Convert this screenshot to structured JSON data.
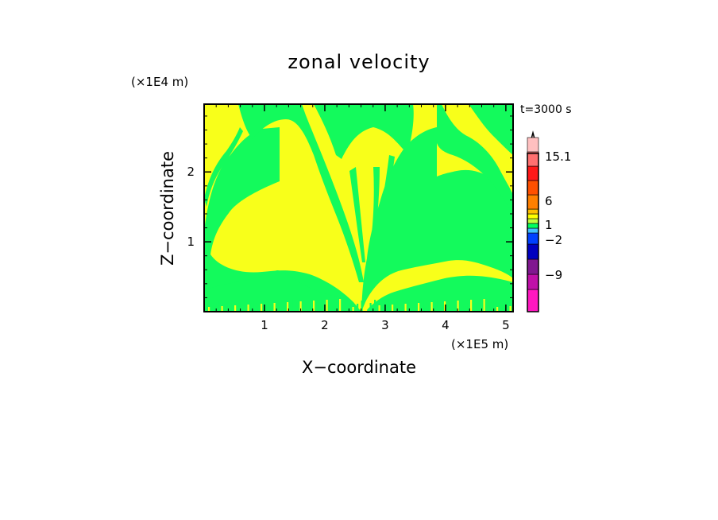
{
  "chart_data": {
    "type": "heatmap",
    "title": "zonal velocity",
    "xlabel": "X−coordinate",
    "ylabel": "Z−coordinate",
    "x_unit": "(×1E5 m)",
    "y_unit": "(×1E4 m)",
    "time_label": "t=3000 s",
    "xlim": [
      0,
      5.12
    ],
    "ylim": [
      0,
      2.97
    ],
    "x_ticks": [
      "1",
      "2",
      "3",
      "4",
      "5"
    ],
    "y_ticks": [
      "1",
      "2"
    ],
    "colorbar": {
      "labels": [
        "15.1",
        "6",
        "1",
        "−2",
        "−9"
      ],
      "colors_bottom_to_top": [
        "#ff18c0",
        "#c010a8",
        "#801890",
        "#0000c0",
        "#0040ff",
        "#40c0ff",
        "#00ff60",
        "#c0ff40",
        "#ffff00",
        "#ffc000",
        "#ff8000",
        "#ff5000",
        "#ff1818",
        "#ff7070",
        "#ffc0c0"
      ],
      "extend_color": "#ffe0e0"
    },
    "field_colors": {
      "background": "#f8ff1a",
      "contour": "#13fa5c"
    }
  }
}
